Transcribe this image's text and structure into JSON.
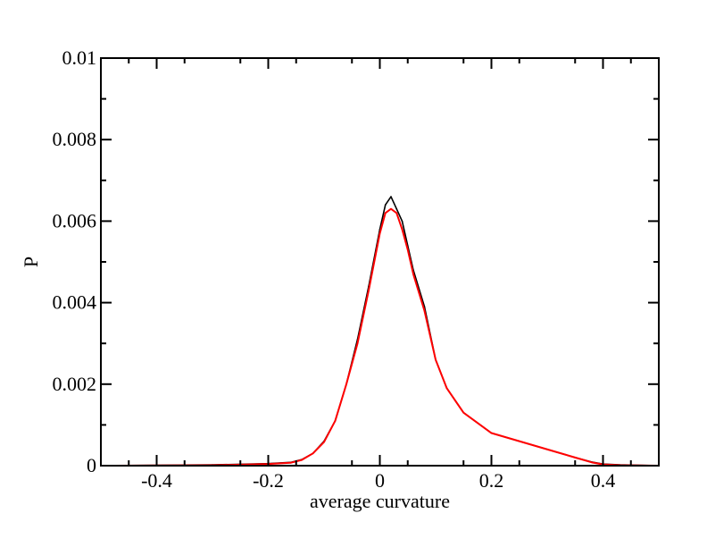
{
  "chart_data": {
    "type": "line",
    "title": "",
    "xlabel": "average curvature",
    "ylabel": "P",
    "xlim": [
      -0.5,
      0.5
    ],
    "ylim": [
      0,
      0.01
    ],
    "grid": false,
    "legend": "none",
    "x_ticks": [
      -0.4,
      -0.2,
      0,
      0.2,
      0.4
    ],
    "x_tick_labels": [
      "-0.4",
      "-0.2",
      "0",
      "0.2",
      "0.4"
    ],
    "y_ticks": [
      0,
      0.002,
      0.004,
      0.006,
      0.008,
      0.01
    ],
    "y_tick_labels": [
      "0",
      "0.002",
      "0.004",
      "0.006",
      "0.008",
      "0.01"
    ],
    "colors": {
      "histogram": "#000000",
      "fit": "#ff0000",
      "axes": "#000000"
    },
    "series": [
      {
        "role": "histogram",
        "color": "#000000",
        "x": [
          -0.5,
          -0.3,
          -0.2,
          -0.16,
          -0.14,
          -0.12,
          -0.1,
          -0.08,
          -0.06,
          -0.04,
          -0.02,
          0.0,
          0.01,
          0.02,
          0.03,
          0.04,
          0.05,
          0.06,
          0.08,
          0.1,
          0.12,
          0.15,
          0.2,
          0.25,
          0.3,
          0.35,
          0.38,
          0.4,
          0.43,
          0.5
        ],
        "y": [
          0.0,
          2e-05,
          5e-05,
          8e-05,
          0.00015,
          0.0003,
          0.0006,
          0.0011,
          0.002,
          0.0031,
          0.0044,
          0.0058,
          0.0064,
          0.0066,
          0.0063,
          0.006,
          0.0054,
          0.0048,
          0.0039,
          0.0026,
          0.0019,
          0.0013,
          0.0008,
          0.0006,
          0.0004,
          0.0002,
          9e-05,
          4e-05,
          2e-05,
          0.0
        ]
      },
      {
        "role": "fit",
        "color": "#ff0000",
        "x": [
          -0.5,
          -0.3,
          -0.2,
          -0.16,
          -0.14,
          -0.12,
          -0.1,
          -0.08,
          -0.06,
          -0.04,
          -0.02,
          0.0,
          0.01,
          0.02,
          0.03,
          0.04,
          0.05,
          0.06,
          0.08,
          0.1,
          0.12,
          0.15,
          0.2,
          0.25,
          0.3,
          0.35,
          0.38,
          0.4,
          0.43,
          0.5
        ],
        "y": [
          0.0,
          1e-05,
          4e-05,
          7e-05,
          0.00014,
          0.0003,
          0.00058,
          0.0011,
          0.002,
          0.003,
          0.0043,
          0.0057,
          0.0062,
          0.0063,
          0.0062,
          0.0058,
          0.0053,
          0.0047,
          0.0038,
          0.0026,
          0.0019,
          0.0013,
          0.0008,
          0.0006,
          0.0004,
          0.0002,
          8e-05,
          3e-05,
          1e-05,
          0.0
        ]
      }
    ]
  }
}
